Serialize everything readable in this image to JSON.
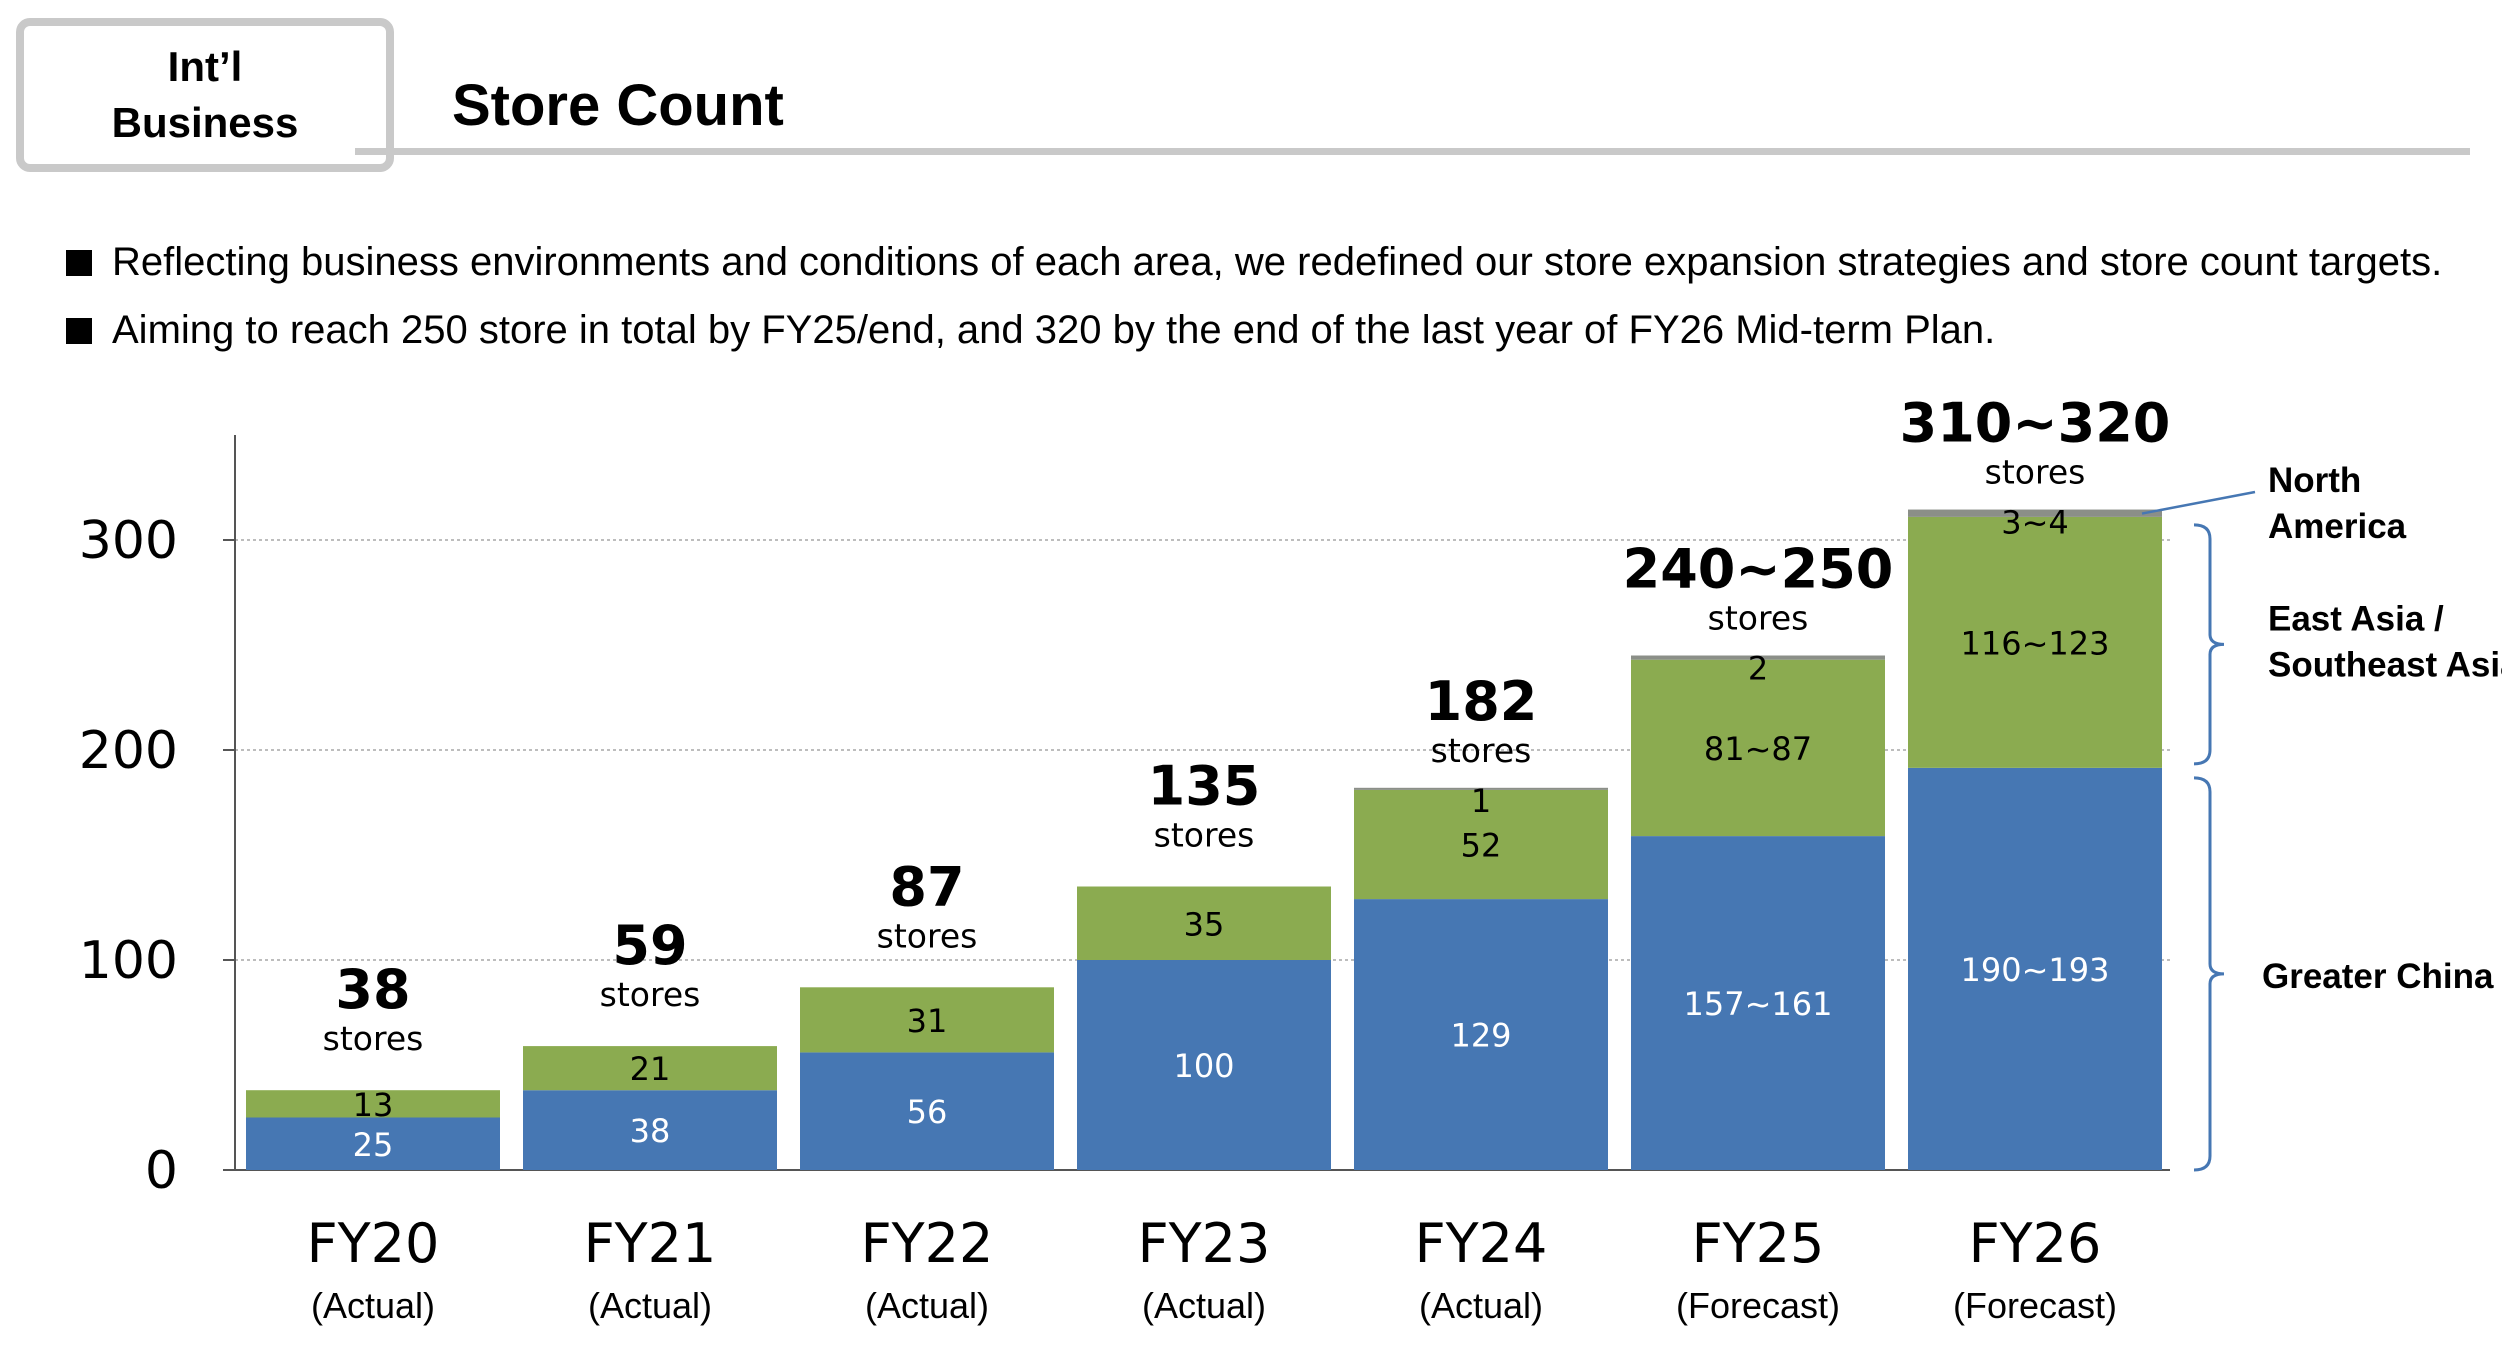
{
  "header": {
    "tag_line1": "Int’l",
    "tag_line2": "Business",
    "title": "Store Count"
  },
  "bullets": [
    "Reflecting business environments and conditions of each area, we redefined our store expansion strategies and store count targets.",
    "Aiming to reach 250 store in total by FY25/end, and 320 by the end of the last year of FY26 Mid-term Plan."
  ],
  "chart_data": {
    "type": "bar",
    "stacked": true,
    "categories": [
      "FY20",
      "FY21",
      "FY22",
      "FY23",
      "FY24",
      "FY25",
      "FY26"
    ],
    "category_sublabels": [
      "(Actual)",
      "(Actual)",
      "(Actual)",
      "(Actual)",
      "(Actual)",
      "(Forecast)",
      "(Forecast)"
    ],
    "ylim": [
      0,
      350
    ],
    "yticks": [
      0,
      100,
      200,
      300
    ],
    "grid": true,
    "series": [
      {
        "name": "Greater China",
        "color": "#4677b3",
        "label_color": "#ffffff",
        "values": [
          25,
          38,
          56,
          100,
          129,
          159,
          191.5
        ],
        "labels": [
          "25",
          "38",
          "56",
          "100",
          "129",
          "157~161",
          "190~193"
        ]
      },
      {
        "name": "East Asia / Southeast Asia",
        "color": "#8bab50",
        "label_color": "#000000",
        "values": [
          13,
          21,
          31,
          35,
          52,
          84,
          119.5
        ],
        "labels": [
          "13",
          "21",
          "31",
          "35",
          "52",
          "81~87",
          "116~123"
        ]
      },
      {
        "name": "North America",
        "color": "#8b8f88",
        "label_color": "#000000",
        "values": [
          0,
          0,
          0,
          0,
          1,
          2,
          3.5
        ],
        "labels": [
          "",
          "",
          "",
          "",
          "1",
          "2",
          "3~4"
        ]
      }
    ],
    "totals": [
      "38",
      "59",
      "87",
      "135",
      "182",
      "240~250",
      "310~320"
    ],
    "total_unit": "stores",
    "legend": {
      "placement": "right",
      "north_america": [
        "North",
        "America"
      ],
      "east_asia": [
        "East Asia /",
        "Southeast Asia"
      ],
      "greater_china": "Greater China",
      "bracket_color": "#4677b3"
    }
  }
}
